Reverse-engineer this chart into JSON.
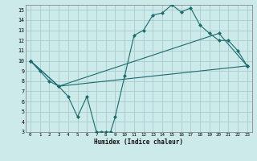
{
  "xlabel": "Humidex (Indice chaleur)",
  "bg_color": "#cceaea",
  "grid_color": "#aacccc",
  "line_color": "#1a6b6b",
  "xlim": [
    -0.5,
    23.5
  ],
  "ylim": [
    3,
    15.5
  ],
  "xticks": [
    0,
    1,
    2,
    3,
    4,
    5,
    6,
    7,
    8,
    9,
    10,
    11,
    12,
    13,
    14,
    15,
    16,
    17,
    18,
    19,
    20,
    21,
    22,
    23
  ],
  "yticks": [
    3,
    4,
    5,
    6,
    7,
    8,
    9,
    10,
    11,
    12,
    13,
    14,
    15
  ],
  "curve1_x": [
    0,
    1,
    2,
    3,
    4,
    5,
    6,
    7,
    7.5,
    8,
    8.5,
    9,
    10,
    11,
    12,
    13,
    14,
    15,
    16,
    17,
    18,
    19,
    20,
    21,
    22,
    23
  ],
  "curve1_y": [
    10,
    9,
    8,
    7.5,
    6.5,
    4.5,
    6.5,
    3,
    3,
    3,
    3,
    4.5,
    8.5,
    12.5,
    13,
    14.5,
    14.7,
    15.5,
    14.8,
    15.2,
    13.5,
    12.7,
    12,
    12,
    11,
    9.5
  ],
  "curve2_x": [
    0,
    3,
    23
  ],
  "curve2_y": [
    10,
    7.5,
    9.5
  ],
  "curve3_x": [
    0,
    3,
    20,
    23
  ],
  "curve3_y": [
    10,
    7.5,
    12.7,
    9.5
  ],
  "markersize": 2.5
}
